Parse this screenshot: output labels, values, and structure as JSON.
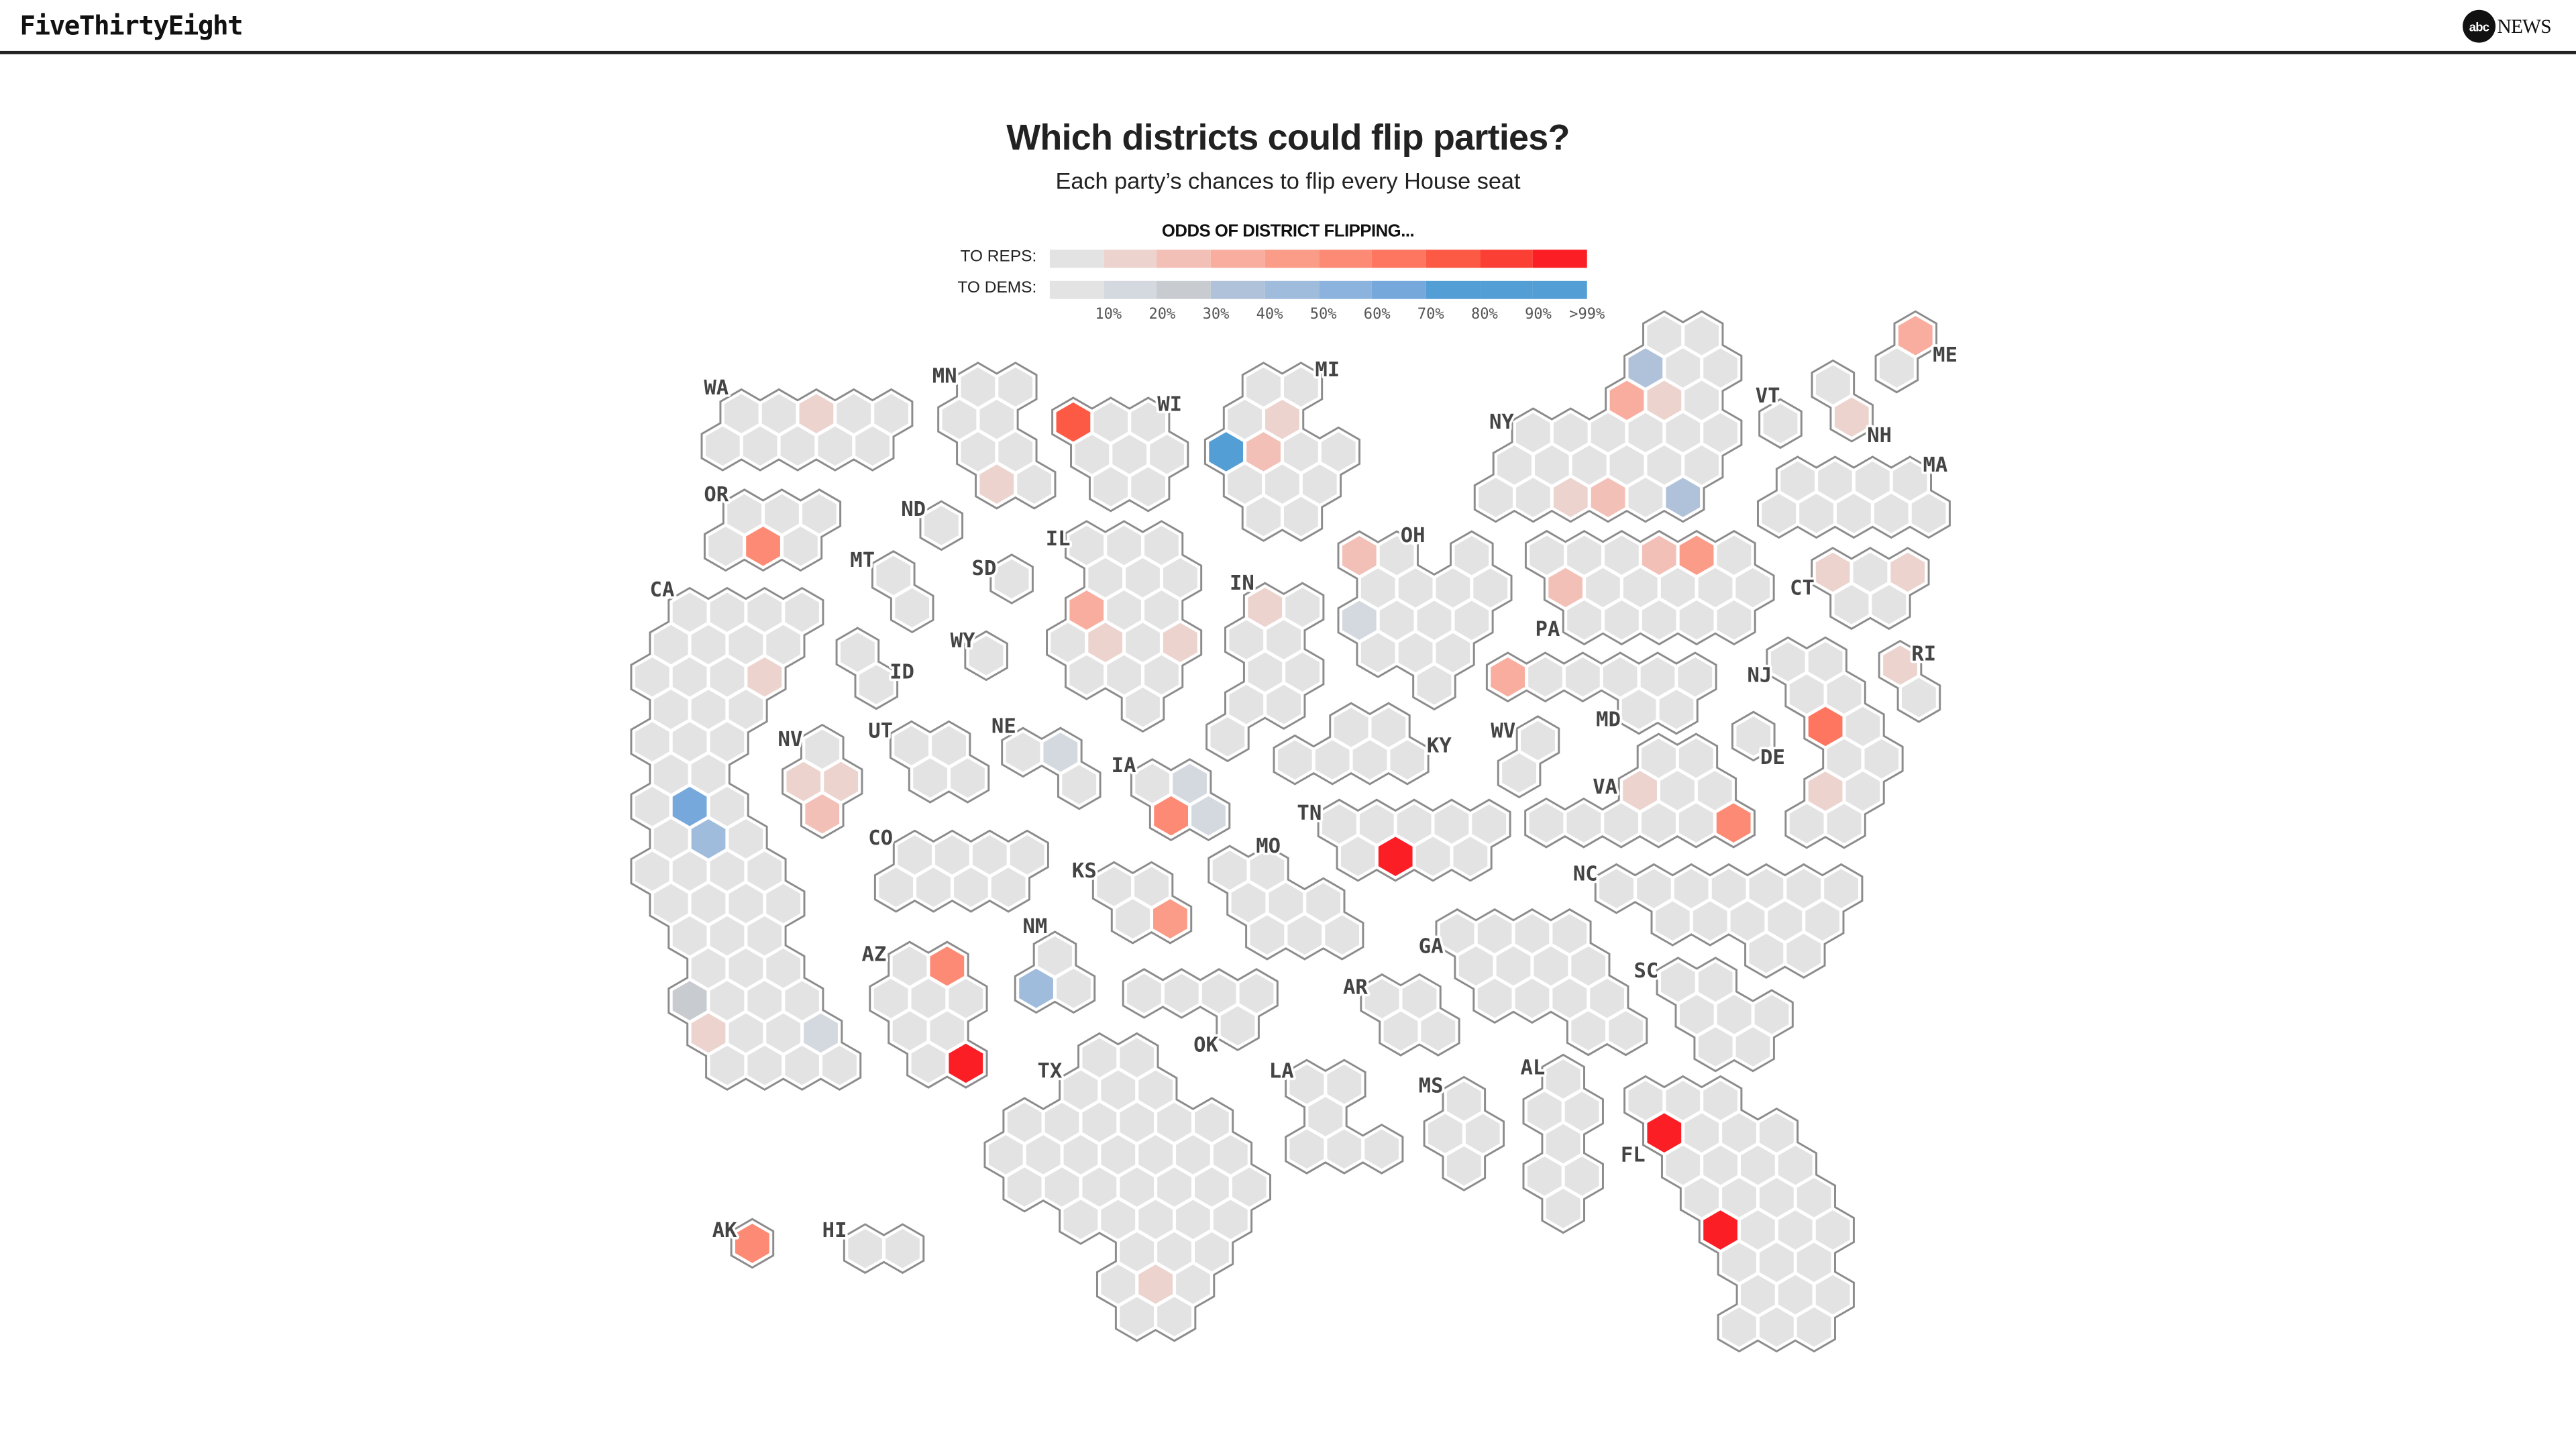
{
  "header": {
    "brand": "FiveThirtyEight",
    "partner_logo": "abc NEWS"
  },
  "title": "Which districts could flip parties?",
  "subtitle": "Each party’s chances to flip every House seat",
  "legend": {
    "title": "ODDS OF DISTRICT FLIPPING...",
    "reps_label": "TO REPS:",
    "dems_label": "TO DEMS:",
    "ticks": [
      "10%",
      "20%",
      "30%",
      "40%",
      "50%",
      "60%",
      "70%",
      "80%",
      "90%",
      ">99%"
    ],
    "reps_colors": [
      "#e3e3e3",
      "#ecd3ce",
      "#f3c0b7",
      "#f9ad9f",
      "#fb9c88",
      "#fd8a74",
      "#fe7660",
      "#fd5a46",
      "#fc3f35",
      "#fb1e24"
    ],
    "dems_colors": [
      "#e3e3e3",
      "#d4d9e0",
      "#c8ccd1",
      "#b0c2da",
      "#a0bcdc",
      "#8cb3de",
      "#76a8dc",
      "#549ed6",
      "#549ed6",
      "#549ed6"
    ]
  },
  "chart_data": {
    "type": "heatmap",
    "title": "Which districts could flip parties?",
    "encoding": "flips maps district index within state to party and 10%-bin of flip odds (R3 = 30-40% chance to flip to Republicans); unlisted districts <10%",
    "states": [
      {
        "abbr": "WA",
        "flips": {
          "2": "R1"
        }
      },
      {
        "abbr": "MN",
        "flips": {
          "6": "R1"
        }
      },
      {
        "abbr": "WI",
        "flips": {
          "0": "R7"
        }
      },
      {
        "abbr": "MI",
        "flips": {
          "3": "R1",
          "4": "D7",
          "5": "R2"
        }
      },
      {
        "abbr": "NY",
        "flips": {
          "2": "D3",
          "5": "R3",
          "6": "R1",
          "22": "R1",
          "23": "R2",
          "25": "D3"
        }
      },
      {
        "abbr": "VT",
        "flips": {}
      },
      {
        "abbr": "NH",
        "flips": {
          "1": "R1"
        }
      },
      {
        "abbr": "ME",
        "flips": {
          "0": "R3"
        }
      },
      {
        "abbr": "MA",
        "flips": {}
      },
      {
        "abbr": "OR",
        "flips": {
          "4": "R5"
        }
      },
      {
        "abbr": "ND",
        "flips": {}
      },
      {
        "abbr": "MT",
        "flips": {}
      },
      {
        "abbr": "SD",
        "flips": {}
      },
      {
        "abbr": "ID",
        "flips": {}
      },
      {
        "abbr": "WY",
        "flips": {}
      },
      {
        "abbr": "IL",
        "flips": {
          "6": "R3",
          "10": "R1",
          "12": "R1"
        }
      },
      {
        "abbr": "IN",
        "flips": {
          "0": "R1"
        }
      },
      {
        "abbr": "OH",
        "flips": {
          "0": "R2",
          "7": "D1"
        }
      },
      {
        "abbr": "PA",
        "flips": {
          "3": "R2",
          "4": "R4",
          "6": "R2"
        }
      },
      {
        "abbr": "CT",
        "flips": {
          "0": "R1",
          "2": "R1"
        }
      },
      {
        "abbr": "RI",
        "flips": {
          "0": "R1"
        }
      },
      {
        "abbr": "NJ",
        "flips": {
          "4": "R6",
          "8": "R1"
        }
      },
      {
        "abbr": "MD",
        "flips": {
          "0": "R3"
        }
      },
      {
        "abbr": "DE",
        "flips": {}
      },
      {
        "abbr": "WV",
        "flips": {}
      },
      {
        "abbr": "VA",
        "flips": {
          "2": "R1",
          "10": "R5"
        }
      },
      {
        "abbr": "KY",
        "flips": {}
      },
      {
        "abbr": "TN",
        "flips": {
          "6": "R9"
        }
      },
      {
        "abbr": "NC",
        "flips": {}
      },
      {
        "abbr": "GA",
        "flips": {}
      },
      {
        "abbr": "SC",
        "flips": {}
      },
      {
        "abbr": "AL",
        "flips": {}
      },
      {
        "abbr": "MS",
        "flips": {}
      },
      {
        "abbr": "FL",
        "flips": {
          "3": "R9",
          "15": "R9"
        }
      },
      {
        "abbr": "LA",
        "flips": {}
      },
      {
        "abbr": "AR",
        "flips": {}
      },
      {
        "abbr": "MO",
        "flips": {}
      },
      {
        "abbr": "OK",
        "flips": {}
      },
      {
        "abbr": "KS",
        "flips": {
          "3": "R4"
        }
      },
      {
        "abbr": "NE",
        "flips": {
          "1": "D1"
        }
      },
      {
        "abbr": "IA",
        "flips": {
          "1": "D1",
          "2": "R5",
          "3": "D1"
        }
      },
      {
        "abbr": "NM",
        "flips": {
          "1": "D4"
        }
      },
      {
        "abbr": "CO",
        "flips": {}
      },
      {
        "abbr": "UT",
        "flips": {}
      },
      {
        "abbr": "NV",
        "flips": {
          "1": "R1",
          "2": "R1",
          "3": "R2"
        }
      },
      {
        "abbr": "AZ",
        "flips": {
          "1": "R5",
          "8": "R9"
        }
      },
      {
        "abbr": "AK",
        "flips": {
          "0": "R5"
        }
      },
      {
        "abbr": "HI",
        "flips": {}
      },
      {
        "abbr": "CA",
        "flips": {
          "11": "R1",
          "21": "D6",
          "24": "D4",
          "40": "D2",
          "44": "R1",
          "47": "D1"
        }
      },
      {
        "abbr": "TX",
        "flips": {
          "34": "R1"
        }
      }
    ]
  }
}
